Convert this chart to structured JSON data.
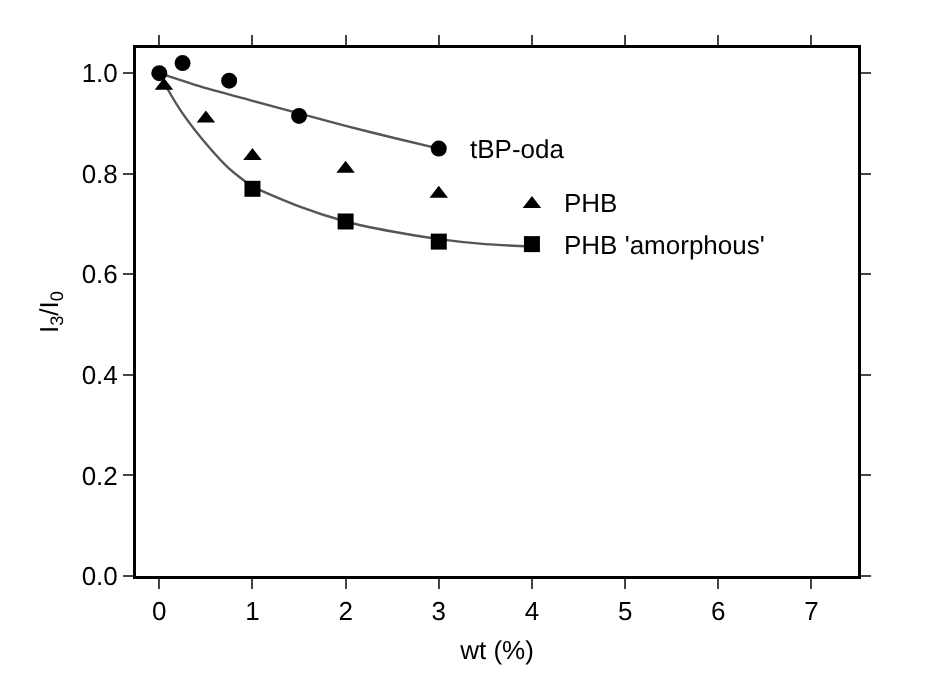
{
  "chart_data": {
    "type": "scatter",
    "xlabel": "wt (%)",
    "ylabel": "I$_{3}$/I$_{0}$",
    "xlim": [
      -0.25,
      7.5
    ],
    "xticks": [
      0,
      1,
      2,
      3,
      4,
      5,
      6,
      7
    ],
    "ylim": [
      0,
      1.05
    ],
    "yticks": [
      {
        "value": 0,
        "label": "0.0"
      },
      {
        "value": 0.2,
        "label": "0.2"
      },
      {
        "value": 0.4,
        "label": "0.4"
      },
      {
        "value": 0.6,
        "label": "0.6"
      },
      {
        "value": 0.8,
        "label": "0.8"
      },
      {
        "value": 1,
        "label": "1.0"
      }
    ],
    "grid": false,
    "series": [
      {
        "type": "line",
        "color": "#555555",
        "marker": "none",
        "x": [
          0,
          0.5,
          1,
          1.5,
          2,
          2.5,
          3
        ],
        "values": [
          1.0,
          0.97,
          0.945,
          0.92,
          0.895,
          0.872,
          0.85
        ]
      },
      {
        "type": "line",
        "color": "#555555",
        "marker": "none",
        "x": [
          0,
          0.1,
          0.25,
          0.5,
          0.75,
          1,
          1.5,
          2,
          2.5,
          3,
          3.5,
          4
        ],
        "values": [
          1.0,
          0.965,
          0.92,
          0.86,
          0.81,
          0.775,
          0.735,
          0.705,
          0.685,
          0.67,
          0.66,
          0.655
        ]
      },
      {
        "name": "PHB 'amorphous'",
        "color": "#000000",
        "marker": "square",
        "x": [
          1,
          2,
          3,
          4
        ],
        "values": [
          0.77,
          0.705,
          0.665,
          0.66
        ]
      },
      {
        "name": "PHB",
        "color": "#000000",
        "marker": "triangle",
        "x": [
          0.05,
          0.5,
          1,
          2,
          3,
          4
        ],
        "values": [
          0.975,
          0.91,
          0.835,
          0.81,
          0.76,
          0.74
        ]
      },
      {
        "name": "tBP-oda",
        "color": "#000000",
        "marker": "circle",
        "x": [
          0,
          0.25,
          0.75,
          1.5,
          3
        ],
        "values": [
          1.0,
          1.02,
          0.985,
          0.915,
          0.85
        ]
      }
    ]
  }
}
